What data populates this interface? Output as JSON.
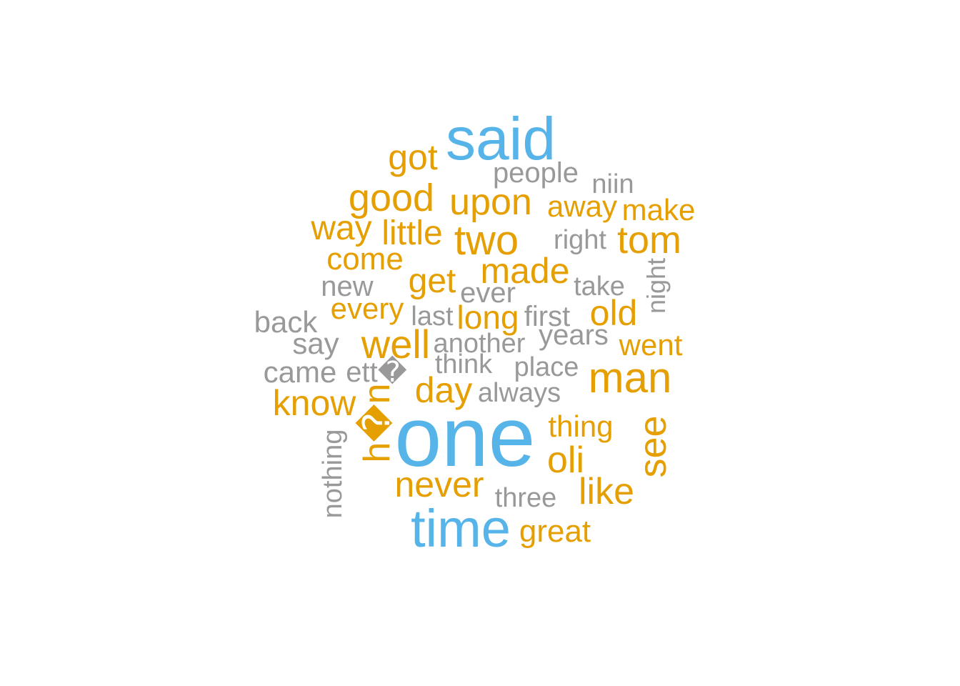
{
  "colors": {
    "high": "#56B4E9",
    "mid": "#E69F00",
    "low": "#999999",
    "background": "#FFFFFF"
  },
  "words": [
    {
      "text": "said",
      "tier": "high"
    },
    {
      "text": "one",
      "tier": "high"
    },
    {
      "text": "time",
      "tier": "high"
    },
    {
      "text": "got",
      "tier": "mid"
    },
    {
      "text": "good",
      "tier": "mid"
    },
    {
      "text": "upon",
      "tier": "mid"
    },
    {
      "text": "away",
      "tier": "mid"
    },
    {
      "text": "make",
      "tier": "mid"
    },
    {
      "text": "way",
      "tier": "mid"
    },
    {
      "text": "little",
      "tier": "mid"
    },
    {
      "text": "two",
      "tier": "mid"
    },
    {
      "text": "tom",
      "tier": "mid"
    },
    {
      "text": "come",
      "tier": "mid"
    },
    {
      "text": "made",
      "tier": "mid"
    },
    {
      "text": "get",
      "tier": "mid"
    },
    {
      "text": "every",
      "tier": "mid"
    },
    {
      "text": "long",
      "tier": "mid"
    },
    {
      "text": "old",
      "tier": "mid"
    },
    {
      "text": "well",
      "tier": "mid"
    },
    {
      "text": "went",
      "tier": "mid"
    },
    {
      "text": "man",
      "tier": "mid"
    },
    {
      "text": "day",
      "tier": "mid"
    },
    {
      "text": "know",
      "tier": "mid"
    },
    {
      "text": "h�n",
      "tier": "mid"
    },
    {
      "text": "thing",
      "tier": "mid"
    },
    {
      "text": "see",
      "tier": "mid"
    },
    {
      "text": "oli",
      "tier": "mid"
    },
    {
      "text": "never",
      "tier": "mid"
    },
    {
      "text": "like",
      "tier": "mid"
    },
    {
      "text": "great",
      "tier": "mid"
    },
    {
      "text": "people",
      "tier": "low"
    },
    {
      "text": "niin",
      "tier": "low"
    },
    {
      "text": "right",
      "tier": "low"
    },
    {
      "text": "new",
      "tier": "low"
    },
    {
      "text": "ever",
      "tier": "low"
    },
    {
      "text": "take",
      "tier": "low"
    },
    {
      "text": "night",
      "tier": "low"
    },
    {
      "text": "back",
      "tier": "low"
    },
    {
      "text": "last",
      "tier": "low"
    },
    {
      "text": "first",
      "tier": "low"
    },
    {
      "text": "years",
      "tier": "low"
    },
    {
      "text": "say",
      "tier": "low"
    },
    {
      "text": "another",
      "tier": "low"
    },
    {
      "text": "think",
      "tier": "low"
    },
    {
      "text": "came",
      "tier": "low"
    },
    {
      "text": "ett�",
      "tier": "low"
    },
    {
      "text": "place",
      "tier": "low"
    },
    {
      "text": "always",
      "tier": "low"
    },
    {
      "text": "nothing",
      "tier": "low"
    },
    {
      "text": "three",
      "tier": "low"
    }
  ]
}
